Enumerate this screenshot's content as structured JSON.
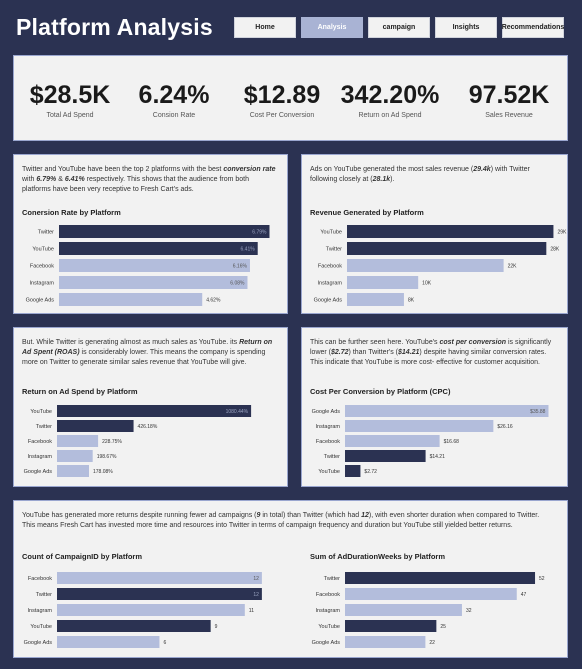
{
  "header": {
    "title": "Platform Analysis"
  },
  "nav": [
    {
      "label": "Home",
      "active": false
    },
    {
      "label": "Analysis",
      "active": true
    },
    {
      "label": "campaign",
      "active": false
    },
    {
      "label": "Insights",
      "active": false
    },
    {
      "label": "Recommendations",
      "active": false
    }
  ],
  "kpis": [
    {
      "value": "$28.5K",
      "label": "Total Ad Spend"
    },
    {
      "value": "6.24%",
      "label": "Consion Rate"
    },
    {
      "value": "$12.89",
      "label": "Cost Per Conversion"
    },
    {
      "value": "342.20%",
      "label": "Return on Ad Spend"
    },
    {
      "value": "97.52K",
      "label": "Sales Revenue"
    }
  ],
  "colors": {
    "dark_bar": "#2b3252",
    "light_bar": "#b3bddc",
    "background": "#2b3252"
  },
  "descriptions": {
    "conversion": {
      "p1": "Twitter and YouTube have been the top 2 platforms with the best ",
      "b1": "conversion rate",
      "p2": " with ",
      "b2": "6.79%",
      "p3": " & ",
      "b3": "6.41%",
      "p4": " respectively. This shows that the audience from both platforms have been very receptive to Fresh Cart's ads."
    },
    "revenue": {
      "p1": "Ads on YouTube generated the most sales revenue (",
      "b1": "29.4k",
      "p2": ") with Twitter following closely at (",
      "b2": "28.1k",
      "p3": ")."
    },
    "roas": {
      "p1": "But. While Twitter is generating almost as much sales as YouTube. its ",
      "b1": "Return on Ad Spent (ROAS)",
      "p2": " is considerably lower. This means the company is spending more on Twitter to generate similar sales revenue that YouTube will give."
    },
    "cpc": {
      "p1": "This can be further seen here. YouTube's ",
      "b1": "cost per conversion",
      "p2": " is significantly lower (",
      "b2": "$2.72",
      "p3": ") than Twitter's (",
      "b3": "$14.21",
      "p4": ") despite having similar conversion rates. This indicate that YouTube is more cost- effective for customer acquisition."
    },
    "campaign": {
      "p1": "YouTube has generated more returns despite running fewer ad campaigns (",
      "b1": "9",
      "p2": " in total) than Twitter (which had ",
      "b2": "12",
      "p3": "), with even shorter duration when compared to Twitter. This means Fresh Cart has invested more time and resources into Twitter in terms of campaign frequency and duration but YouTube still yielded better returns."
    }
  },
  "chart_data": [
    {
      "id": "conv",
      "type": "bar",
      "orientation": "horizontal",
      "title": "Conersion Rate by Platform",
      "categories": [
        "Twitter",
        "YouTube",
        "Facebook",
        "Instagram",
        "Google Ads"
      ],
      "values": [
        6.79,
        6.41,
        6.16,
        6.08,
        4.62
      ],
      "labels": [
        "6.79%",
        "6.41%",
        "6.16%",
        "6.08%",
        "4.62%"
      ],
      "highlight": [
        true,
        true,
        false,
        false,
        false
      ],
      "label_inside": [
        true,
        true,
        true,
        true,
        false
      ],
      "max": 7.0
    },
    {
      "id": "rev",
      "type": "bar",
      "orientation": "horizontal",
      "title": "Revenue Generated by Platform",
      "categories": [
        "YouTube",
        "Twitter",
        "Facebook",
        "Instagram",
        "Google Ads"
      ],
      "values": [
        29,
        28,
        22,
        10,
        8
      ],
      "labels": [
        "29K",
        "28K",
        "22K",
        "10K",
        "8K"
      ],
      "highlight": [
        true,
        true,
        false,
        false,
        false
      ],
      "label_inside": [
        false,
        false,
        false,
        false,
        false
      ],
      "max": 29.5
    },
    {
      "id": "roas",
      "type": "bar",
      "orientation": "horizontal",
      "title": "Return on Ad Spend by Platform",
      "categories": [
        "YouTube",
        "Twitter",
        "Facebook",
        "Instagram",
        "Google Ads"
      ],
      "values": [
        1080.44,
        426.18,
        228.75,
        198.67,
        178.08
      ],
      "labels": [
        "1080.44%",
        "426.18%",
        "228.75%",
        "198.67%",
        "178.08%"
      ],
      "highlight": [
        true,
        true,
        false,
        false,
        false
      ],
      "label_inside": [
        true,
        false,
        false,
        false,
        false
      ],
      "max": 1130
    },
    {
      "id": "cpc",
      "type": "bar",
      "orientation": "horizontal",
      "title": "Cost Per Conversion by Platform (CPC)",
      "categories": [
        "Google Ads",
        "Instagram",
        "Facebook",
        "Twitter",
        "YouTube"
      ],
      "values": [
        35.88,
        26.16,
        16.68,
        14.21,
        2.72
      ],
      "labels": [
        "$35.88",
        "$26.16",
        "$16.68",
        "$14.21",
        "$2.72"
      ],
      "highlight": [
        false,
        false,
        false,
        true,
        true
      ],
      "label_inside": [
        true,
        false,
        false,
        false,
        false
      ],
      "max": 36.5
    },
    {
      "id": "count",
      "type": "bar",
      "orientation": "horizontal",
      "title": "Count of CampaignID by Platform",
      "categories": [
        "Facebook",
        "Twitter",
        "Instagram",
        "YouTube",
        "Google Ads"
      ],
      "values": [
        12,
        12,
        11,
        9,
        6
      ],
      "labels": [
        "12",
        "12",
        "11",
        "9",
        "6"
      ],
      "highlight": [
        false,
        true,
        false,
        true,
        false
      ],
      "label_inside": [
        true,
        true,
        false,
        false,
        false
      ],
      "max": 12.3
    },
    {
      "id": "dur",
      "type": "bar",
      "orientation": "horizontal",
      "title": "Sum of AdDurationWeeks by Platform",
      "categories": [
        "Twitter",
        "Facebook",
        "Instagram",
        "YouTube",
        "Google Ads"
      ],
      "values": [
        52,
        47,
        32,
        25,
        22
      ],
      "labels": [
        "52",
        "47",
        "32",
        "25",
        "22"
      ],
      "highlight": [
        true,
        false,
        false,
        true,
        false
      ],
      "label_inside": [
        false,
        false,
        false,
        false,
        false
      ],
      "max": 55
    }
  ]
}
